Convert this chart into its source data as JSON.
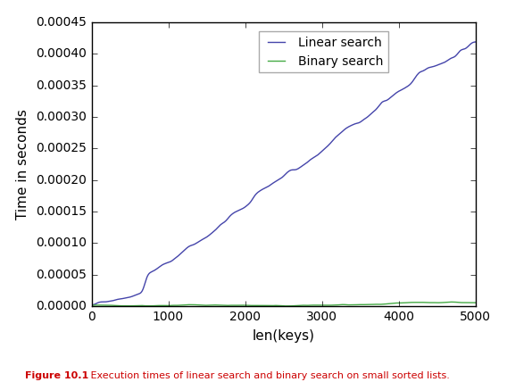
{
  "minLength": 10,
  "maxLength": 5000,
  "step": 10,
  "linear_color": "#4444aa",
  "binary_color": "#44aa44",
  "xlabel": "len(keys)",
  "ylabel": "Time in seconds",
  "ylim": [
    0,
    0.00045
  ],
  "xlim": [
    0,
    5000
  ],
  "legend_labels": [
    "Linear search",
    "Binary search"
  ],
  "caption_bold": "Figure 10.1",
  "caption_rest": "   Execution times of linear search and binary search on small sorted lists.",
  "caption_color": "#cc0000",
  "caption_fontsize": 8,
  "figsize": [
    5.68,
    4.28
  ],
  "dpi": 100
}
